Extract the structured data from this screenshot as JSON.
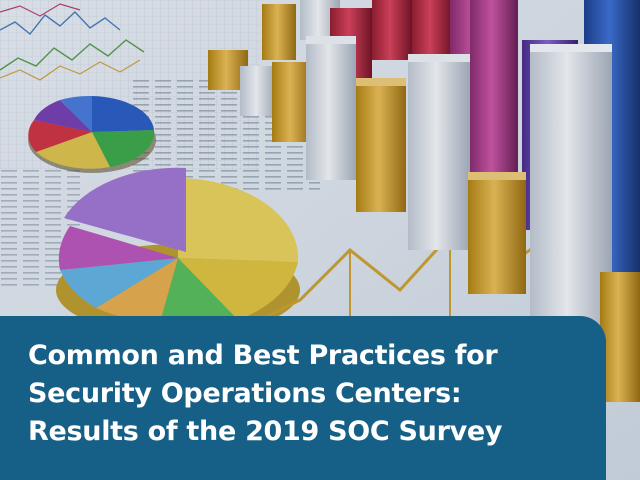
{
  "title": {
    "lines": [
      "Common and Best Practices for",
      "Security Operations Centers:",
      "Results of the 2019 SOC Survey"
    ]
  },
  "colors": {
    "title_box": "#165f86",
    "title_text": "#ffffff"
  }
}
